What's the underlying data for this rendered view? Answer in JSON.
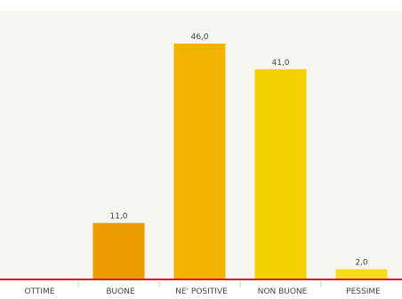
{
  "chart_data": {
    "type": "bar",
    "categories": [
      "OTTIME",
      "BUONE",
      "NE' POSITIVE",
      "NON BUONE",
      "PESSIME"
    ],
    "values": [
      0,
      11,
      46,
      41,
      2
    ],
    "value_labels": [
      "",
      "11,0",
      "46,0",
      "41,0",
      "2,0"
    ],
    "ylim": [
      0,
      50
    ],
    "grid": false,
    "legend": "none"
  },
  "colors": {
    "plot_background": "#f7f6f1",
    "baseline": "#d6102a",
    "separator": "#c8c8c8",
    "bars": [
      "#e48b00",
      "#ec9b00",
      "#f2b400",
      "#f5d000",
      "#f6dc1a"
    ]
  }
}
